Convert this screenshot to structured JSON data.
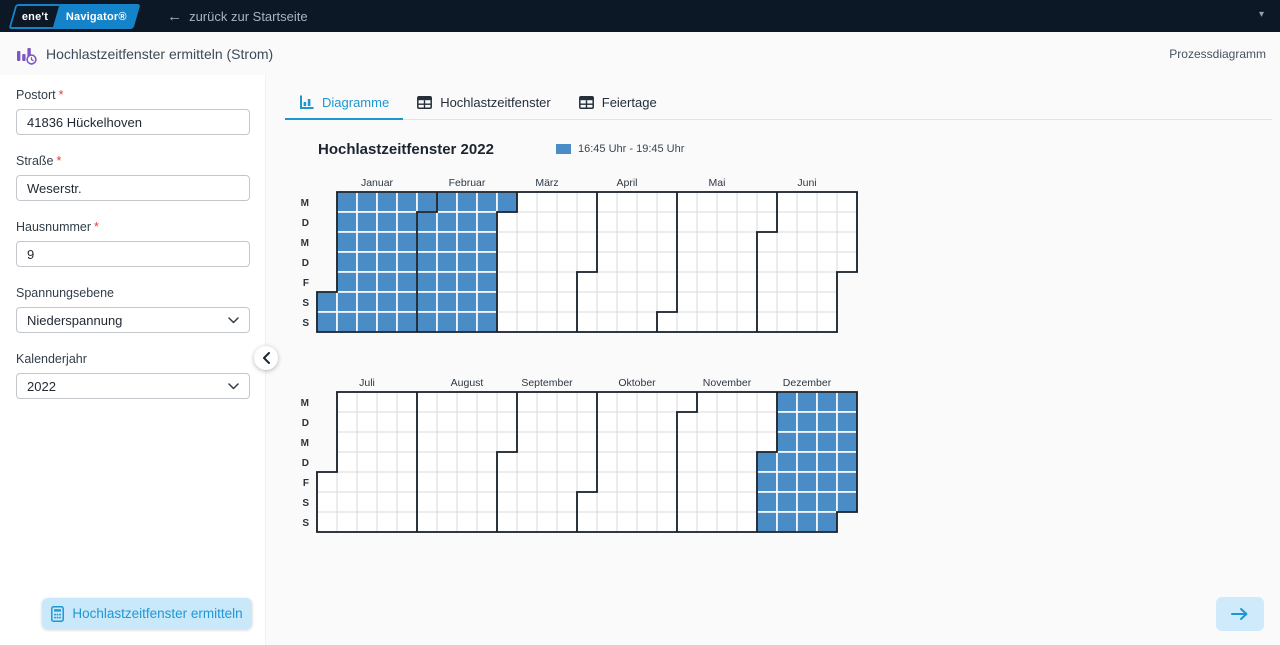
{
  "topbar": {
    "logo_primary": "ene't",
    "logo_secondary": "Navigator®",
    "back_arrow": "←",
    "back_label": "zurück zur Startseite",
    "caret": "▾"
  },
  "header": {
    "title": "Hochlastzeitfenster ermitteln (Strom)",
    "process_link": "Prozessdiagramm"
  },
  "sidebar": {
    "required_mark": "*",
    "fields": [
      {
        "label": "Postort",
        "required": true,
        "type": "text",
        "value": "41836 Hückelhoven"
      },
      {
        "label": "Straße",
        "required": true,
        "type": "text",
        "value": "Weserstr."
      },
      {
        "label": "Hausnummer",
        "required": true,
        "type": "text",
        "value": "9"
      },
      {
        "label": "Spannungsebene",
        "required": false,
        "type": "select",
        "value": "Niederspannung"
      },
      {
        "label": "Kalenderjahr",
        "required": false,
        "type": "select",
        "value": "2022"
      }
    ],
    "submit_label": "Hochlastzeitfenster ermitteln"
  },
  "tabs": [
    {
      "label": "Diagramme",
      "icon": "chart-icon",
      "active": true
    },
    {
      "label": "Hochlastzeitfenster",
      "icon": "table-icon",
      "active": false
    },
    {
      "label": "Feiertage",
      "icon": "table-icon",
      "active": false
    }
  ],
  "chart_data": {
    "type": "heatmap",
    "title": "Hochlastzeitfenster 2022",
    "year": 2022,
    "weekday_labels": [
      "M",
      "D",
      "M",
      "D",
      "F",
      "S",
      "S"
    ],
    "month_labels": [
      "Januar",
      "Februar",
      "März",
      "April",
      "Mai",
      "Juni",
      "Juli",
      "August",
      "September",
      "Oktober",
      "November",
      "Dezember"
    ],
    "charts": [
      {
        "months": [
          0,
          5
        ]
      },
      {
        "months": [
          6,
          11
        ]
      }
    ],
    "legend": {
      "label": "16:45 Uhr - 19:45 Uhr",
      "color": "#4a8cc5"
    },
    "highlighted_ranges": [
      {
        "from": "2022-01-01",
        "to": "2022-02-28",
        "window": "16:45 Uhr - 19:45 Uhr"
      },
      {
        "from": "2022-12-01",
        "to": "2022-12-31",
        "window": "16:45 Uhr - 19:45 Uhr"
      }
    ],
    "colors": {
      "fill": "#4a8cc5",
      "empty": "#ffffff",
      "grid": "#dadada",
      "cell_gap": "#ffffff",
      "month_border": "#141d27"
    }
  }
}
